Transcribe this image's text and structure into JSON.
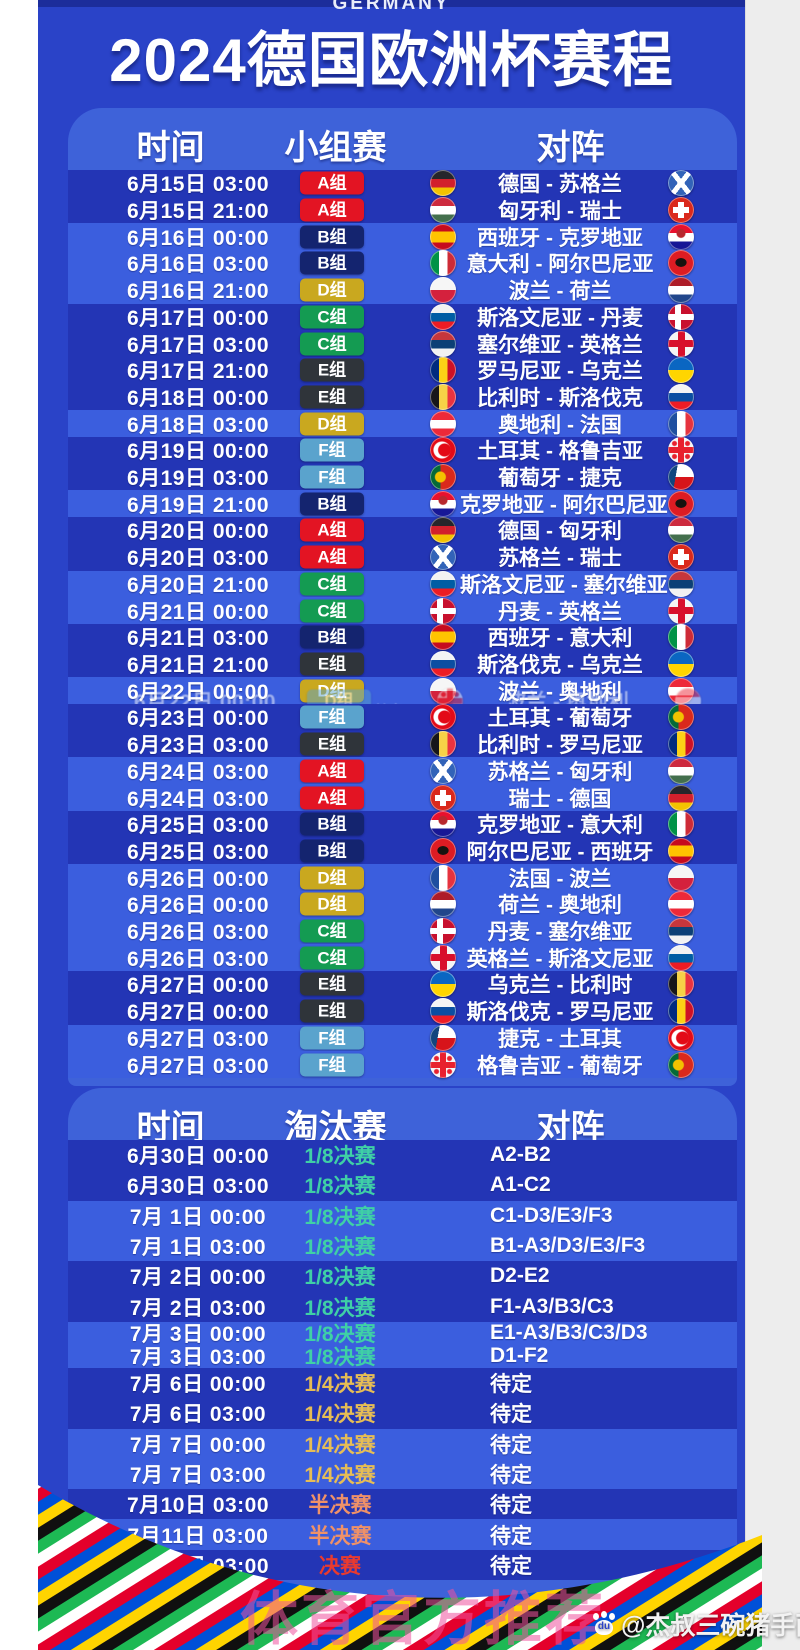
{
  "header": {
    "eyebrow": "GERMANY",
    "title": "2024德国欧洲杯赛程"
  },
  "group_section": {
    "col_time": "时间",
    "col_stage": "小组赛",
    "col_match": "对阵",
    "rows": [
      {
        "time": "6月15日 03:00",
        "group": "A组",
        "match": "德国 - 苏格兰",
        "home_flag": "de",
        "away_flag": "sct",
        "band": "d"
      },
      {
        "time": "6月15日 21:00",
        "group": "A组",
        "match": "匈牙利 - 瑞士",
        "home_flag": "hu",
        "away_flag": "ch",
        "band": "d"
      },
      {
        "time": "6月16日 00:00",
        "group": "B组",
        "match": "西班牙 - 克罗地亚",
        "home_flag": "es",
        "away_flag": "hr",
        "band": "l"
      },
      {
        "time": "6月16日 03:00",
        "group": "B组",
        "match": "意大利 - 阿尔巴尼亚",
        "home_flag": "it",
        "away_flag": "al",
        "band": "l"
      },
      {
        "time": "6月16日 21:00",
        "group": "D组",
        "match": "波兰 - 荷兰",
        "home_flag": "pl",
        "away_flag": "nl",
        "band": "l"
      },
      {
        "time": "6月17日 00:00",
        "group": "C组",
        "match": "斯洛文尼亚 - 丹麦",
        "home_flag": "si",
        "away_flag": "dk",
        "band": "d"
      },
      {
        "time": "6月17日 03:00",
        "group": "C组",
        "match": "塞尔维亚 - 英格兰",
        "home_flag": "rs",
        "away_flag": "en",
        "band": "d"
      },
      {
        "time": "6月17日 21:00",
        "group": "E组",
        "match": "罗马尼亚 - 乌克兰",
        "home_flag": "ro",
        "away_flag": "ua",
        "band": "d"
      },
      {
        "time": "6月18日 00:00",
        "group": "E组",
        "match": "比利时 - 斯洛伐克",
        "home_flag": "be",
        "away_flag": "sk",
        "band": "d"
      },
      {
        "time": "6月18日 03:00",
        "group": "D组",
        "match": "奥地利 - 法国",
        "home_flag": "at",
        "away_flag": "fr",
        "band": "l"
      },
      {
        "time": "6月19日 00:00",
        "group": "F组",
        "match": "土耳其 - 格鲁吉亚",
        "home_flag": "tr",
        "away_flag": "ge",
        "band": "d"
      },
      {
        "time": "6月19日 03:00",
        "group": "F组",
        "match": "葡萄牙 - 捷克",
        "home_flag": "pt",
        "away_flag": "cz",
        "band": "d"
      },
      {
        "time": "6月19日 21:00",
        "group": "B组",
        "match": "克罗地亚 - 阿尔巴尼亚",
        "home_flag": "hr",
        "away_flag": "al",
        "band": "l"
      },
      {
        "time": "6月20日 00:00",
        "group": "A组",
        "match": "德国 - 匈牙利",
        "home_flag": "de",
        "away_flag": "hu",
        "band": "d"
      },
      {
        "time": "6月20日 03:00",
        "group": "A组",
        "match": "苏格兰 - 瑞士",
        "home_flag": "sct",
        "away_flag": "ch",
        "band": "d"
      },
      {
        "time": "6月20日 21:00",
        "group": "C组",
        "match": "斯洛文尼亚 - 塞尔维亚",
        "home_flag": "si",
        "away_flag": "rs",
        "band": "l"
      },
      {
        "time": "6月21日 00:00",
        "group": "C组",
        "match": "丹麦 - 英格兰",
        "home_flag": "dk",
        "away_flag": "en",
        "band": "l"
      },
      {
        "time": "6月21日 03:00",
        "group": "B组",
        "match": "西班牙 - 意大利",
        "home_flag": "es",
        "away_flag": "it",
        "band": "d"
      },
      {
        "time": "6月21日 21:00",
        "group": "E组",
        "match": "斯洛伐克 - 乌克兰",
        "home_flag": "sk",
        "away_flag": "ua",
        "band": "d"
      },
      {
        "time": "6月22日 00:00",
        "group": "D组",
        "match": "波兰 - 奥地利",
        "home_flag": "pl",
        "away_flag": "at",
        "band": "l",
        "glitch": true
      },
      {
        "time": "6月23日 00:00",
        "group": "F组",
        "match": "土耳其 - 葡萄牙",
        "home_flag": "tr",
        "away_flag": "pt",
        "band": "d"
      },
      {
        "time": "6月23日 03:00",
        "group": "E组",
        "match": "比利时 - 罗马尼亚",
        "home_flag": "be",
        "away_flag": "ro",
        "band": "d"
      },
      {
        "time": "6月24日 03:00",
        "group": "A组",
        "match": "苏格兰 - 匈牙利",
        "home_flag": "sct",
        "away_flag": "hu",
        "band": "l"
      },
      {
        "time": "6月24日 03:00",
        "group": "A组",
        "match": "瑞士 - 德国",
        "home_flag": "ch",
        "away_flag": "de",
        "band": "l"
      },
      {
        "time": "6月25日 03:00",
        "group": "B组",
        "match": "克罗地亚 - 意大利",
        "home_flag": "hr",
        "away_flag": "it",
        "band": "d"
      },
      {
        "time": "6月25日 03:00",
        "group": "B组",
        "match": "阿尔巴尼亚 - 西班牙",
        "home_flag": "al",
        "away_flag": "es",
        "band": "d"
      },
      {
        "time": "6月26日 00:00",
        "group": "D组",
        "match": "法国 - 波兰",
        "home_flag": "fr",
        "away_flag": "pl",
        "band": "l"
      },
      {
        "time": "6月26日 00:00",
        "group": "D组",
        "match": "荷兰 - 奥地利",
        "home_flag": "nl",
        "away_flag": "at",
        "band": "l"
      },
      {
        "time": "6月26日 03:00",
        "group": "C组",
        "match": "丹麦 - 塞尔维亚",
        "home_flag": "dk",
        "away_flag": "rs",
        "band": "l"
      },
      {
        "time": "6月26日 03:00",
        "group": "C组",
        "match": "英格兰 - 斯洛文尼亚",
        "home_flag": "en",
        "away_flag": "si",
        "band": "l"
      },
      {
        "time": "6月27日 00:00",
        "group": "E组",
        "match": "乌克兰 - 比利时",
        "home_flag": "ua",
        "away_flag": "be",
        "band": "d"
      },
      {
        "time": "6月27日 00:00",
        "group": "E组",
        "match": "斯洛伐克 - 罗马尼亚",
        "home_flag": "sk",
        "away_flag": "ro",
        "band": "d"
      },
      {
        "time": "6月27日 03:00",
        "group": "F组",
        "match": "捷克 - 土耳其",
        "home_flag": "cz",
        "away_flag": "tr",
        "band": "l"
      },
      {
        "time": "6月27日 03:00",
        "group": "F组",
        "match": "格鲁吉亚 - 葡萄牙",
        "home_flag": "ge",
        "away_flag": "pt",
        "band": "l"
      }
    ]
  },
  "knockout_section": {
    "col_time": "时间",
    "col_stage": "淘汰赛",
    "col_match": "对阵",
    "rows": [
      {
        "time": "6月30日 00:00",
        "stage": "1/8决赛",
        "match": "A2-B2",
        "band": "d"
      },
      {
        "time": "6月30日 03:00",
        "stage": "1/8决赛",
        "match": "A1-C2",
        "band": "d"
      },
      {
        "time": "7月 1日 00:00",
        "stage": "1/8决赛",
        "match": "C1-D3/E3/F3",
        "band": "l"
      },
      {
        "time": "7月 1日 03:00",
        "stage": "1/8决赛",
        "match": "B1-A3/D3/E3/F3",
        "band": "l"
      },
      {
        "time": "7月 2日 00:00",
        "stage": "1/8决赛",
        "match": "D2-E2",
        "band": "d"
      },
      {
        "time": "7月 2日 03:00",
        "stage": "1/8决赛",
        "match": "F1-A3/B3/C3",
        "band": "d"
      },
      {
        "time": "7月 3日 00:00",
        "stage": "1/8决赛",
        "match": "E1-A3/B3/C3/D3",
        "band": "l",
        "compressed": true
      },
      {
        "time": "7月 3日 03:00",
        "stage": "1/8决赛",
        "match": "D1-F2",
        "band": "l",
        "compressed": true
      },
      {
        "time": "7月 6日 00:00",
        "stage": "1/4决赛",
        "match": "待定",
        "band": "d"
      },
      {
        "time": "7月 6日 03:00",
        "stage": "1/4决赛",
        "match": "待定",
        "band": "d"
      },
      {
        "time": "7月 7日 00:00",
        "stage": "1/4决赛",
        "match": "待定",
        "band": "l"
      },
      {
        "time": "7月 7日 03:00",
        "stage": "1/4决赛",
        "match": "待定",
        "band": "l"
      },
      {
        "time": "7月10日 03:00",
        "stage": "半决赛",
        "match": "待定",
        "band": "d"
      },
      {
        "time": "7月11日 03:00",
        "stage": "半决赛",
        "match": "待定",
        "band": "l"
      },
      {
        "time": "7月15日 03:00",
        "stage": "决赛",
        "match": "待定",
        "band": "d"
      }
    ]
  },
  "glitch": {
    "small_text": "怕音",
    "ghost_home_flag": "ge",
    "ghost_away_flag": "at"
  },
  "watermarks": {
    "promo": "体育官方推荐",
    "author": "@杰叔三碗猪手面",
    "paw_text": "du"
  },
  "colors": {
    "poster_bg": "#2a43c8",
    "card_bg": "#3e62d9",
    "row_dark": "#2335b5",
    "row_light": "#3b5ede",
    "groups": {
      "A组": "#e31423",
      "B组": "#14246f",
      "C组": "#149b52",
      "D组": "#c9a81f",
      "E组": "#2f343a",
      "F组": "#5aa3cd"
    },
    "stages": {
      "1/8决赛": "#3fd0a6",
      "1/4决赛": "#e6bd55",
      "半决赛": "#ef9168",
      "决赛": "#ea3a2e",
      "default": "#ffffff"
    },
    "stripe_palette": [
      "#ffd400",
      "#101010",
      "#1db954",
      "#ffffff",
      "#e4002b",
      "#0050d8"
    ]
  }
}
